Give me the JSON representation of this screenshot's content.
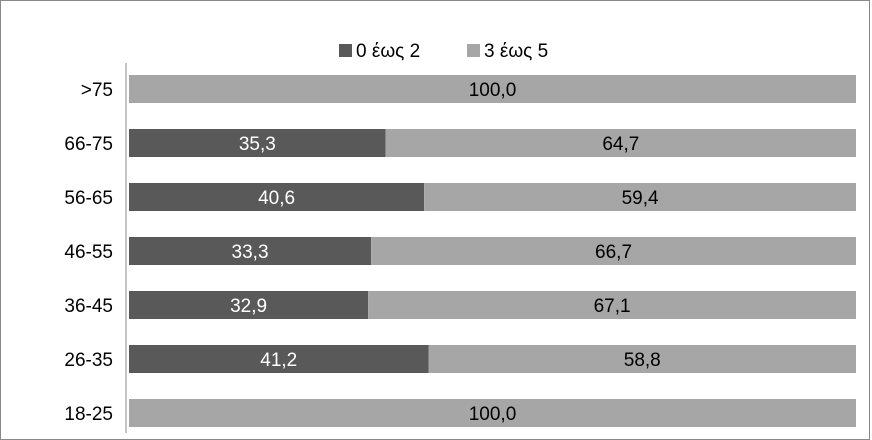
{
  "chart_data": {
    "type": "bar",
    "orientation": "horizontal",
    "stacked": "percent",
    "categories": [
      ">75",
      "66-75",
      "56-65",
      "46-55",
      "36-45",
      "26-35",
      "18-25"
    ],
    "series": [
      {
        "name": "0 έως 2",
        "color": "#595959",
        "values": [
          0.0,
          35.3,
          40.6,
          33.3,
          32.9,
          41.2,
          0.0
        ],
        "labels": ",0 35,3 40,6 33,3 32,9 41,2 ,0"
      },
      {
        "name": "3 έως 5",
        "color": "#a6a6a6",
        "values": [
          100.0,
          64.7,
          59.4,
          66.7,
          67.1,
          58.8,
          100.0
        ],
        "labels": "100,0 64,7 59,4 66,7 67,1 58,8 100,0"
      }
    ],
    "xlim": [
      0,
      100
    ],
    "grid": false,
    "legend_position": "top"
  }
}
